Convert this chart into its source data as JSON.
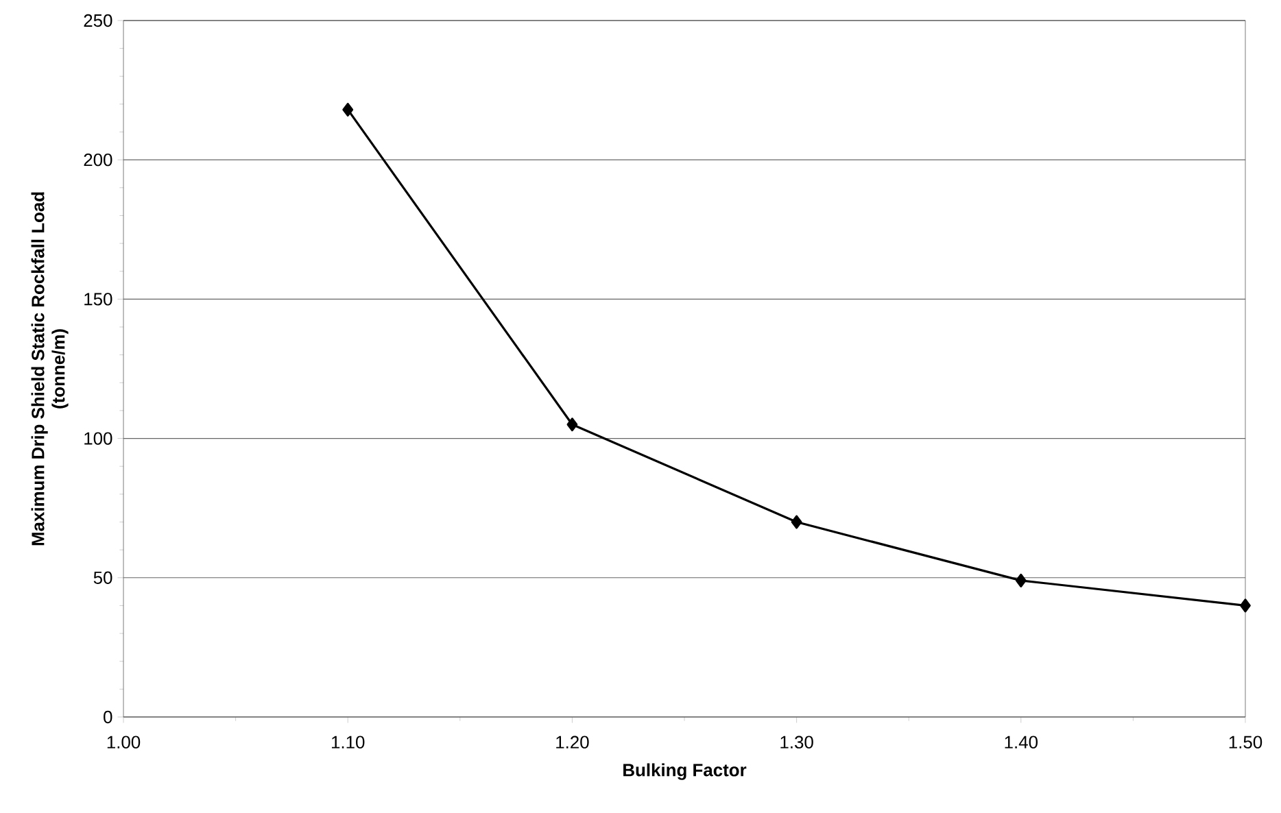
{
  "chart_data": {
    "type": "line",
    "xlabel": "Bulking Factor",
    "ylabel": "Maximum Drip Shield Static Rockfall Load\n(tonne/m)",
    "x": [
      1.1,
      1.2,
      1.3,
      1.4,
      1.5
    ],
    "series": [
      {
        "color": "#000000",
        "values": [
          218,
          105,
          70,
          49,
          40
        ]
      }
    ],
    "xlim": [
      1.0,
      1.5
    ],
    "xticks": [
      {
        "value": 1.0,
        "label": "1.00"
      },
      {
        "value": 1.1,
        "label": "1.10"
      },
      {
        "value": 1.2,
        "label": "1.20"
      },
      {
        "value": 1.3,
        "label": "1.30"
      },
      {
        "value": 1.4,
        "label": "1.40"
      },
      {
        "value": 1.5,
        "label": "1.50"
      }
    ],
    "ylim": [
      0,
      250
    ],
    "yticks": [
      0,
      50,
      100,
      150,
      200,
      250
    ],
    "grid": "y",
    "marker": "diamond",
    "line_style": "solid"
  }
}
